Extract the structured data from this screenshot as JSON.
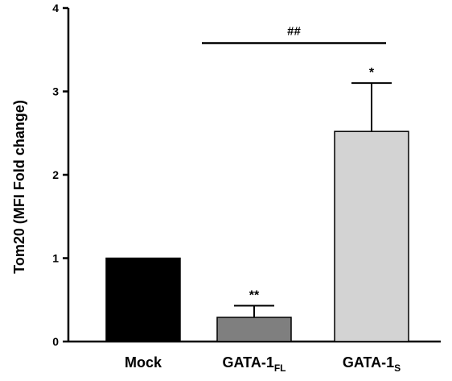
{
  "chart_data": {
    "type": "bar",
    "ylabel": "Tom20 (MFI Fold change)",
    "ylim": [
      0,
      4
    ],
    "yticks": [
      0,
      1,
      2,
      3,
      4
    ],
    "grid": false,
    "categories": [
      {
        "main": "Mock",
        "sub": ""
      },
      {
        "main": "GATA-1",
        "sub": "FL"
      },
      {
        "main": "GATA-1",
        "sub": "S"
      }
    ],
    "values": [
      1.0,
      0.29,
      2.52
    ],
    "errors": [
      0,
      0.14,
      0.58
    ],
    "colors": [
      "#000000",
      "#7f7f7f",
      "#d3d3d3"
    ],
    "significance": [
      "",
      "**",
      "*"
    ],
    "comparison": {
      "label": "##",
      "from_index": 1,
      "to_index": 2,
      "y": 3.58
    }
  }
}
